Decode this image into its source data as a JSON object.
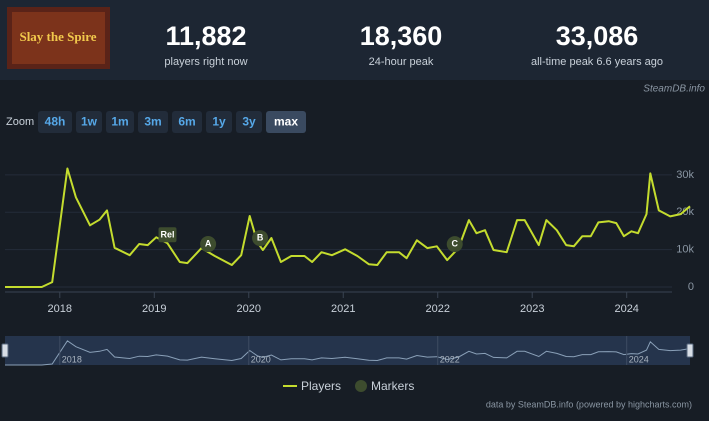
{
  "header": {
    "logo_text": "Slay the Spire",
    "stats": [
      {
        "value": "11,882",
        "label": "players right now"
      },
      {
        "value": "18,360",
        "label": "24-hour peak"
      },
      {
        "value": "33,086",
        "label": "all-time peak 6.6 years ago"
      }
    ],
    "source": "SteamDB.info"
  },
  "zoom": {
    "label": "Zoom",
    "buttons": [
      "48h",
      "1w",
      "1m",
      "3m",
      "6m",
      "1y",
      "3y",
      "max"
    ],
    "active": 7
  },
  "chart_data": {
    "type": "line",
    "x": [
      2017.42,
      2017.81,
      2017.92,
      2018.08,
      2018.17,
      2018.32,
      2018.42,
      2018.5,
      2018.58,
      2018.74,
      2018.84,
      2018.93,
      2019.02,
      2019.14,
      2019.27,
      2019.35,
      2019.5,
      2019.64,
      2019.82,
      2019.92,
      2020.01,
      2020.09,
      2020.15,
      2020.24,
      2020.34,
      2020.45,
      2020.59,
      2020.67,
      2020.77,
      2020.88,
      2021.02,
      2021.15,
      2021.27,
      2021.36,
      2021.46,
      2021.59,
      2021.67,
      2021.78,
      2021.89,
      2021.99,
      2022.1,
      2022.22,
      2022.33,
      2022.41,
      2022.5,
      2022.59,
      2022.73,
      2022.84,
      2022.92,
      2023.07,
      2023.15,
      2023.26,
      2023.36,
      2023.44,
      2023.53,
      2023.62,
      2023.7,
      2023.81,
      2023.89,
      2023.97,
      2024.05,
      2024.12,
      2024.21,
      2024.25,
      2024.34,
      2024.46,
      2024.57,
      2024.67
    ],
    "series": [
      {
        "name": "Players",
        "color": "#c4dc2e",
        "values": [
          0,
          0,
          1300,
          31700,
          24000,
          16500,
          18000,
          20500,
          10500,
          8500,
          11500,
          11200,
          13300,
          11700,
          6700,
          6400,
          10400,
          8300,
          5900,
          8500,
          19000,
          12000,
          9900,
          13100,
          6700,
          8300,
          8300,
          6700,
          9300,
          8500,
          10100,
          8300,
          6100,
          5900,
          9300,
          9300,
          7700,
          12500,
          10400,
          10900,
          7200,
          10400,
          17900,
          14400,
          15200,
          9900,
          9300,
          17900,
          17900,
          11200,
          17900,
          15200,
          11200,
          10900,
          13600,
          13600,
          17300,
          17600,
          17100,
          13600,
          14900,
          14400,
          19500,
          30400,
          20500,
          18900,
          19500,
          21600
        ]
      }
    ],
    "markers": {
      "name": "Markers",
      "color": "#3d4c2e",
      "items": [
        {
          "label": "Rel",
          "x": 2019.14
        },
        {
          "label": "A",
          "x": 2019.57
        },
        {
          "label": "B",
          "x": 2020.12
        },
        {
          "label": "C",
          "x": 2022.18
        }
      ]
    },
    "xlim": [
      2017.42,
      2024.67
    ],
    "xticks": [
      2018,
      2019,
      2020,
      2021,
      2022,
      2023,
      2024
    ],
    "ylim": [
      0,
      38000
    ],
    "yticks": [
      0,
      {
        "value": 10000,
        "label": "10k"
      },
      {
        "value": 20000,
        "label": "20k"
      },
      {
        "value": 30000,
        "label": "30k"
      }
    ],
    "navigator_xticks": [
      2018,
      2020,
      2022,
      2024
    ],
    "grid": true,
    "credit": "data by SteamDB.info (powered by highcharts.com)"
  }
}
